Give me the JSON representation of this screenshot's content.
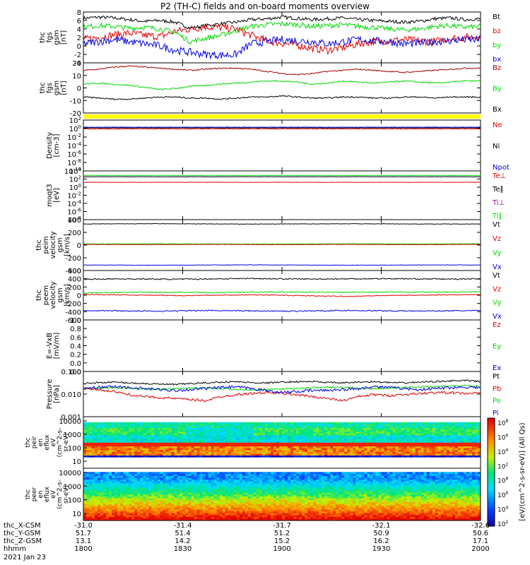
{
  "title": "P2 (TH-C) fields and on-board moments overview",
  "colors": {
    "black": "#000000",
    "red": "#e00000",
    "green": "#00d800",
    "blue": "#0000e0",
    "darkred": "#a00000",
    "yellow": "#ffff00"
  },
  "chart_data": {
    "type": "line",
    "time_ticks": [
      "1800",
      "1830",
      "1900",
      "1930",
      "2000"
    ],
    "panels": [
      {
        "ylabel": [
          "thc",
          "fgs",
          "gsm",
          "[nT]"
        ],
        "ylim": [
          -4,
          8
        ],
        "yticks": [
          "-4",
          "-2",
          "0",
          "2",
          "4",
          "6",
          "8"
        ],
        "legend": [
          {
            "name": "Bt",
            "color": "#000000"
          },
          {
            "name": "bz",
            "color": "#e00000"
          },
          {
            "name": "by",
            "color": "#00d800"
          },
          {
            "name": "bx",
            "color": "#0000e0"
          }
        ],
        "series": [
          {
            "color": "#000000",
            "noise": 0.4,
            "values": [
              6.5,
              6.8,
              6.6,
              6.2,
              5.8,
              6.0,
              5.6,
              4.2,
              4.8,
              5.2,
              5.6,
              6.2,
              6.4,
              6.8,
              6.5,
              6.2,
              6.4,
              6.6,
              6.2,
              6.0,
              5.8,
              5.6,
              5.8,
              6.4,
              6.6,
              6.2,
              6.4
            ]
          },
          {
            "color": "#e00000",
            "noise": 0.9,
            "values": [
              1.5,
              2.0,
              2.6,
              3.0,
              2.5,
              2.2,
              3.4,
              4.0,
              4.5,
              4.3,
              4.0,
              2.5,
              1.2,
              0.6,
              0.2,
              -0.6,
              -1.0,
              -0.4,
              0.5,
              1.0,
              1.2,
              1.5,
              1.2,
              1.0,
              1.8,
              2.0,
              2.2
            ]
          },
          {
            "color": "#00d800",
            "noise": 0.6,
            "values": [
              4.5,
              4.8,
              4.6,
              4.2,
              4.4,
              4.0,
              3.2,
              1.0,
              1.8,
              2.5,
              3.6,
              4.6,
              5.0,
              5.2,
              5.0,
              4.6,
              4.8,
              5.0,
              4.6,
              4.4,
              4.0,
              3.8,
              4.0,
              4.6,
              4.8,
              4.4,
              4.6
            ]
          },
          {
            "color": "#0000e0",
            "noise": 0.9,
            "values": [
              0.5,
              1.0,
              1.5,
              1.0,
              0.5,
              0.0,
              -1.0,
              -1.5,
              -2.0,
              -2.2,
              -2.0,
              0.5,
              1.0,
              1.5,
              1.2,
              1.0,
              0.5,
              1.0,
              1.5,
              1.2,
              1.0,
              0.5,
              0.6,
              1.0,
              1.2,
              1.5,
              1.4
            ]
          }
        ]
      },
      {
        "ylabel": [
          "thc",
          "fgs",
          "gsm",
          "[nT]"
        ],
        "ylim": [
          -25,
          22
        ],
        "yticks": [
          "-20",
          "-10",
          "0",
          "10",
          "20"
        ],
        "legend": [
          {
            "name": "Bz",
            "color": "#a00000"
          },
          {
            "name": "By",
            "color": "#00d800"
          },
          {
            "name": "Bx",
            "color": "#000000"
          }
        ],
        "series": [
          {
            "color": "#a00000",
            "noise": 0.6,
            "values": [
              15,
              16,
              18,
              19,
              18,
              17,
              16,
              15,
              16,
              17,
              17,
              16,
              14,
              12,
              11,
              12,
              14,
              15,
              16,
              15,
              14,
              13,
              14,
              15,
              16,
              17,
              17
            ]
          },
          {
            "color": "#00d800",
            "noise": 0.6,
            "values": [
              2,
              3,
              2,
              1,
              -1,
              -3,
              -2,
              0,
              1,
              2,
              3,
              4,
              5,
              5,
              4,
              2,
              3,
              5,
              4,
              3,
              4,
              5,
              4,
              3,
              4,
              5,
              5
            ]
          },
          {
            "color": "#000000",
            "noise": 0.6,
            "values": [
              -10,
              -11,
              -12,
              -12,
              -11,
              -10,
              -10,
              -11,
              -11,
              -12,
              -11,
              -10,
              -10,
              -9,
              -10,
              -11,
              -11,
              -10,
              -10,
              -11,
              -11,
              -10,
              -10,
              -11,
              -10,
              -10,
              -10
            ]
          }
        ]
      },
      {
        "ylabel": [
          "Density",
          "[cm-3]"
        ],
        "ylim": [
          -12,
          3
        ],
        "yticks": [
          "10^-10",
          "10^-8",
          "10^-6",
          "10^-4",
          "10^-2",
          "10^0",
          "10^2"
        ],
        "log": true,
        "legend": [
          {
            "name": "Ne",
            "color": "#e00000"
          },
          {
            "name": "Ni",
            "color": "#000000"
          },
          {
            "name": "Npot",
            "color": "#0000e0"
          }
        ],
        "series": [
          {
            "color": "#000000",
            "noise": 0.05,
            "values": [
              0.7,
              0.7,
              0.7,
              0.7,
              0.7
            ]
          },
          {
            "color": "#e00000",
            "noise": 0.05,
            "values": [
              0.4,
              0.4,
              0.4,
              0.4,
              0.4
            ]
          },
          {
            "color": "#0000e0",
            "noise": 0.05,
            "values": [
              0.9,
              0.9,
              0.9,
              0.9,
              0.9
            ]
          }
        ]
      },
      {
        "ylabel": [
          "moqt3",
          "[eV]"
        ],
        "ylim": [
          -10,
          5
        ],
        "yticks": [
          "10^-8",
          "10^-6",
          "10^-4",
          "10^-2",
          "10^0",
          "10^2",
          "10^4"
        ],
        "log": true,
        "legend": [
          {
            "name": "Te⊥",
            "color": "#e00000"
          },
          {
            "name": "Te∥",
            "color": "#000000"
          },
          {
            "name": "Ti⊥",
            "color": "#a000a0"
          },
          {
            "name": "Ti∥",
            "color": "#00d800"
          }
        ],
        "series": [
          {
            "color": "#000000",
            "noise": 0.05,
            "values": [
              3.2,
              3.2,
              3.2,
              3.2,
              3.2
            ]
          },
          {
            "color": "#00d800",
            "noise": 0.05,
            "values": [
              3.6,
              3.6,
              3.6,
              3.6,
              3.6
            ]
          },
          {
            "color": "#e00000",
            "noise": 0.05,
            "values": [
              1.5,
              1.5,
              1.5,
              1.5,
              1.5
            ]
          }
        ]
      },
      {
        "ylabel": [
          "thc",
          "peim",
          "velocity",
          "gsm",
          "[km/s]"
        ],
        "ylim": [
          -480,
          460
        ],
        "yticks": [
          "-400",
          "-200",
          "0",
          "200",
          "400"
        ],
        "legend": [
          {
            "name": "Vt",
            "color": "#000000"
          },
          {
            "name": "Vz",
            "color": "#e00000"
          },
          {
            "name": "Vy",
            "color": "#00d800"
          },
          {
            "name": "Vx",
            "color": "#0000e0"
          }
        ],
        "series": [
          {
            "color": "#000000",
            "noise": 4,
            "values": [
              380,
              382,
              385,
              383,
              380,
              378,
              380,
              382,
              384,
              383,
              380,
              379,
              381
            ]
          },
          {
            "color": "#00d800",
            "noise": 4,
            "values": [
              10,
              12,
              15,
              12,
              10,
              8,
              10,
              12,
              14,
              12,
              10,
              12,
              14
            ]
          },
          {
            "color": "#e00000",
            "noise": 4,
            "values": [
              2,
              0,
              -2,
              0,
              2,
              0,
              -2,
              0,
              2,
              0,
              -2,
              0,
              2
            ]
          },
          {
            "color": "#0000e0",
            "noise": 4,
            "values": [
              -378,
              -380,
              -383,
              -381,
              -378,
              -376,
              -378,
              -380,
              -382,
              -381,
              -378,
              -377,
              -379
            ]
          }
        ]
      },
      {
        "ylabel": [
          "thc",
          "peem",
          "velocity",
          "gsm",
          "[km/s]"
        ],
        "ylim": [
          -650,
          650
        ],
        "yticks": [
          "-600",
          "-400",
          "-200",
          "0",
          "200",
          "400",
          "600"
        ],
        "legend": [
          {
            "name": "Vt",
            "color": "#000000"
          },
          {
            "name": "Vz",
            "color": "#e00000"
          },
          {
            "name": "Vy",
            "color": "#00d800"
          },
          {
            "name": "Vx",
            "color": "#0000e0"
          }
        ],
        "series": [
          {
            "color": "#000000",
            "noise": 15,
            "values": [
              420,
              430,
              425,
              420,
              430,
              440,
              430,
              425,
              430,
              435,
              430,
              425,
              430
            ]
          },
          {
            "color": "#00d800",
            "noise": 12,
            "values": [
              60,
              70,
              80,
              75,
              70,
              80,
              85,
              80,
              75,
              80,
              85,
              80,
              90
            ]
          },
          {
            "color": "#e00000",
            "noise": 10,
            "values": [
              20,
              10,
              0,
              -10,
              0,
              10,
              0,
              -20,
              -30,
              -10,
              0,
              10,
              20
            ]
          },
          {
            "color": "#0000e0",
            "noise": 15,
            "values": [
              -400,
              -410,
              -420,
              -410,
              -400,
              -410,
              -420,
              -410,
              -400,
              -410,
              -415,
              -410,
              -405
            ]
          }
        ]
      },
      {
        "ylabel": [
          "E=-VxB",
          "[mV/m]"
        ],
        "ylim": [
          -0.05,
          1.0
        ],
        "yticks": [
          "0.0",
          "0.0",
          "0.2",
          "0.4",
          "0.6",
          "0.8",
          "1.0"
        ],
        "legend": [
          {
            "name": "Ez",
            "color": "#e00000"
          },
          {
            "name": "Ey",
            "color": "#00d800"
          },
          {
            "name": "Ex",
            "color": "#0000e0"
          }
        ],
        "series": []
      },
      {
        "ylabel": [
          "Pressure",
          "[nPa]"
        ],
        "ylim": [
          -3.1,
          -0.85
        ],
        "yticks": [
          "0.001",
          "0.010",
          "0.100"
        ],
        "log": true,
        "legend": [
          {
            "name": "Pt",
            "color": "#000000"
          },
          {
            "name": "Pb",
            "color": "#e00000"
          },
          {
            "name": "Pe",
            "color": "#00d800"
          },
          {
            "name": "Pi",
            "color": "#0000e0"
          }
        ],
        "series": [
          {
            "color": "#000000",
            "noise": 0.04,
            "values": [
              -1.45,
              -1.4,
              -1.38,
              -1.42,
              -1.45,
              -1.48,
              -1.5,
              -1.45,
              -1.42,
              -1.38,
              -1.36,
              -1.4,
              -1.42,
              -1.38,
              -1.36,
              -1.35,
              -1.4,
              -1.42,
              -1.38,
              -1.36,
              -1.4,
              -1.42,
              -1.38,
              -1.35,
              -1.32,
              -1.3,
              -1.35
            ]
          },
          {
            "color": "#00d800",
            "noise": 0.04,
            "values": [
              -1.7,
              -1.68,
              -1.65,
              -1.7,
              -1.72,
              -1.74,
              -1.7,
              -1.68,
              -1.66,
              -1.7,
              -1.74,
              -1.76,
              -1.75,
              -1.72,
              -1.7,
              -1.66,
              -1.64,
              -1.65,
              -1.68,
              -1.7,
              -1.68,
              -1.64,
              -1.62,
              -1.6,
              -1.58,
              -1.55,
              -1.6
            ]
          },
          {
            "color": "#e00000",
            "noise": 0.06,
            "values": [
              -1.7,
              -1.75,
              -1.85,
              -2.0,
              -2.1,
              -2.15,
              -2.2,
              -2.25,
              -2.3,
              -2.1,
              -2.0,
              -1.95,
              -1.9,
              -1.95,
              -2.0,
              -2.1,
              -2.2,
              -2.3,
              -2.1,
              -2.0,
              -2.05,
              -2.0,
              -1.95,
              -1.9,
              -1.9,
              -1.95,
              -1.92
            ]
          },
          {
            "color": "#0000e0",
            "noise": 0.07,
            "values": [
              -1.7,
              -1.65,
              -1.6,
              -1.65,
              -1.7,
              -1.75,
              -1.8,
              -1.75,
              -1.7,
              -1.65,
              -1.62,
              -1.7,
              -1.8,
              -1.9,
              -1.85,
              -1.8,
              -1.78,
              -1.75,
              -1.7,
              -1.6,
              -1.65,
              -1.7,
              -1.75,
              -1.7,
              -1.65,
              -1.62,
              -1.65
            ]
          }
        ]
      }
    ],
    "spectra": [
      {
        "ylabel": [
          "thc",
          "peir",
          "en",
          "eflux",
          "eV",
          "(cm^2-s-",
          "sr-eV)"
        ],
        "yticks": [
          "10",
          "100",
          "1000",
          "10000"
        ],
        "kind": "ion"
      },
      {
        "ylabel": [
          "thc",
          "peer",
          "en",
          "eflux",
          "eV",
          "(cm^2-s-",
          "sr-eV)"
        ],
        "yticks": [
          "10",
          "100",
          "1000",
          "10000"
        ],
        "kind": "electron"
      }
    ],
    "colorbar": {
      "label": "[eV/(cm^2-s-sr-eV)] (All Qs)",
      "ticks": [
        "10^8",
        "10^6",
        "10^4",
        "10^2",
        "10^8",
        "10^6",
        "10^4",
        "10^2"
      ]
    },
    "ephemeris": {
      "rows": [
        {
          "label": "thc_X-CSM",
          "values": [
            "-31.0",
            "-31.4",
            "-31.7",
            "-32.1",
            "-32.6"
          ]
        },
        {
          "label": "thc_Y-GSM",
          "values": [
            "51.7",
            "51.4",
            "51.2",
            "50.9",
            "50.6"
          ]
        },
        {
          "label": "thc_Z-GSM",
          "values": [
            "13.1",
            "14.2",
            "15.2",
            "16.2",
            "17.1"
          ]
        },
        {
          "label": "hhmm",
          "values": [
            "1800",
            "1830",
            "1900",
            "1930",
            "2000"
          ]
        }
      ],
      "date": "2021 Jan 23"
    }
  }
}
